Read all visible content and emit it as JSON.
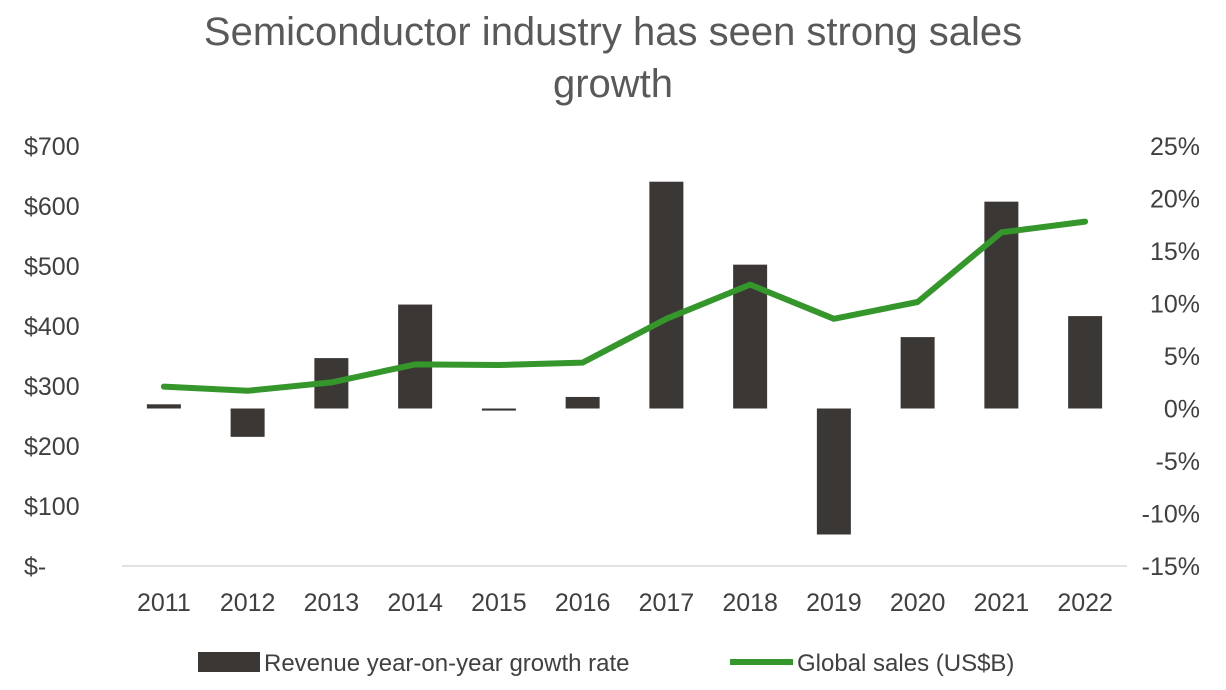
{
  "chart_data": {
    "type": "bar",
    "title_lines": [
      "Semiconductor industry has seen strong sales",
      "growth"
    ],
    "categories": [
      "2011",
      "2012",
      "2013",
      "2014",
      "2015",
      "2016",
      "2017",
      "2018",
      "2019",
      "2020",
      "2021",
      "2022"
    ],
    "series": [
      {
        "name": "Revenue year-on-year growth rate",
        "type": "bar",
        "axis": "right",
        "color": "#3b3735",
        "values": [
          0.4,
          -2.7,
          4.8,
          9.9,
          -0.2,
          1.1,
          21.6,
          13.7,
          -12.0,
          6.8,
          19.7,
          8.8
        ]
      },
      {
        "name": "Global sales (US$B)",
        "type": "line",
        "axis": "left",
        "color": "#34962b",
        "values": [
          299,
          292,
          306,
          336,
          335,
          339,
          412,
          469,
          412,
          440,
          556,
          574
        ]
      }
    ],
    "left_axis": {
      "range": [
        0,
        700
      ],
      "ticks": [
        "$700",
        "$600",
        "$500",
        "$400",
        "$300",
        "$200",
        "$100",
        "$-"
      ]
    },
    "right_axis": {
      "range": [
        -15,
        25
      ],
      "ticks": [
        "25%",
        "20%",
        "15%",
        "10%",
        "5%",
        "0%",
        "-5%",
        "-10%",
        "-15%"
      ]
    },
    "legend": "bottom",
    "grid": false
  }
}
